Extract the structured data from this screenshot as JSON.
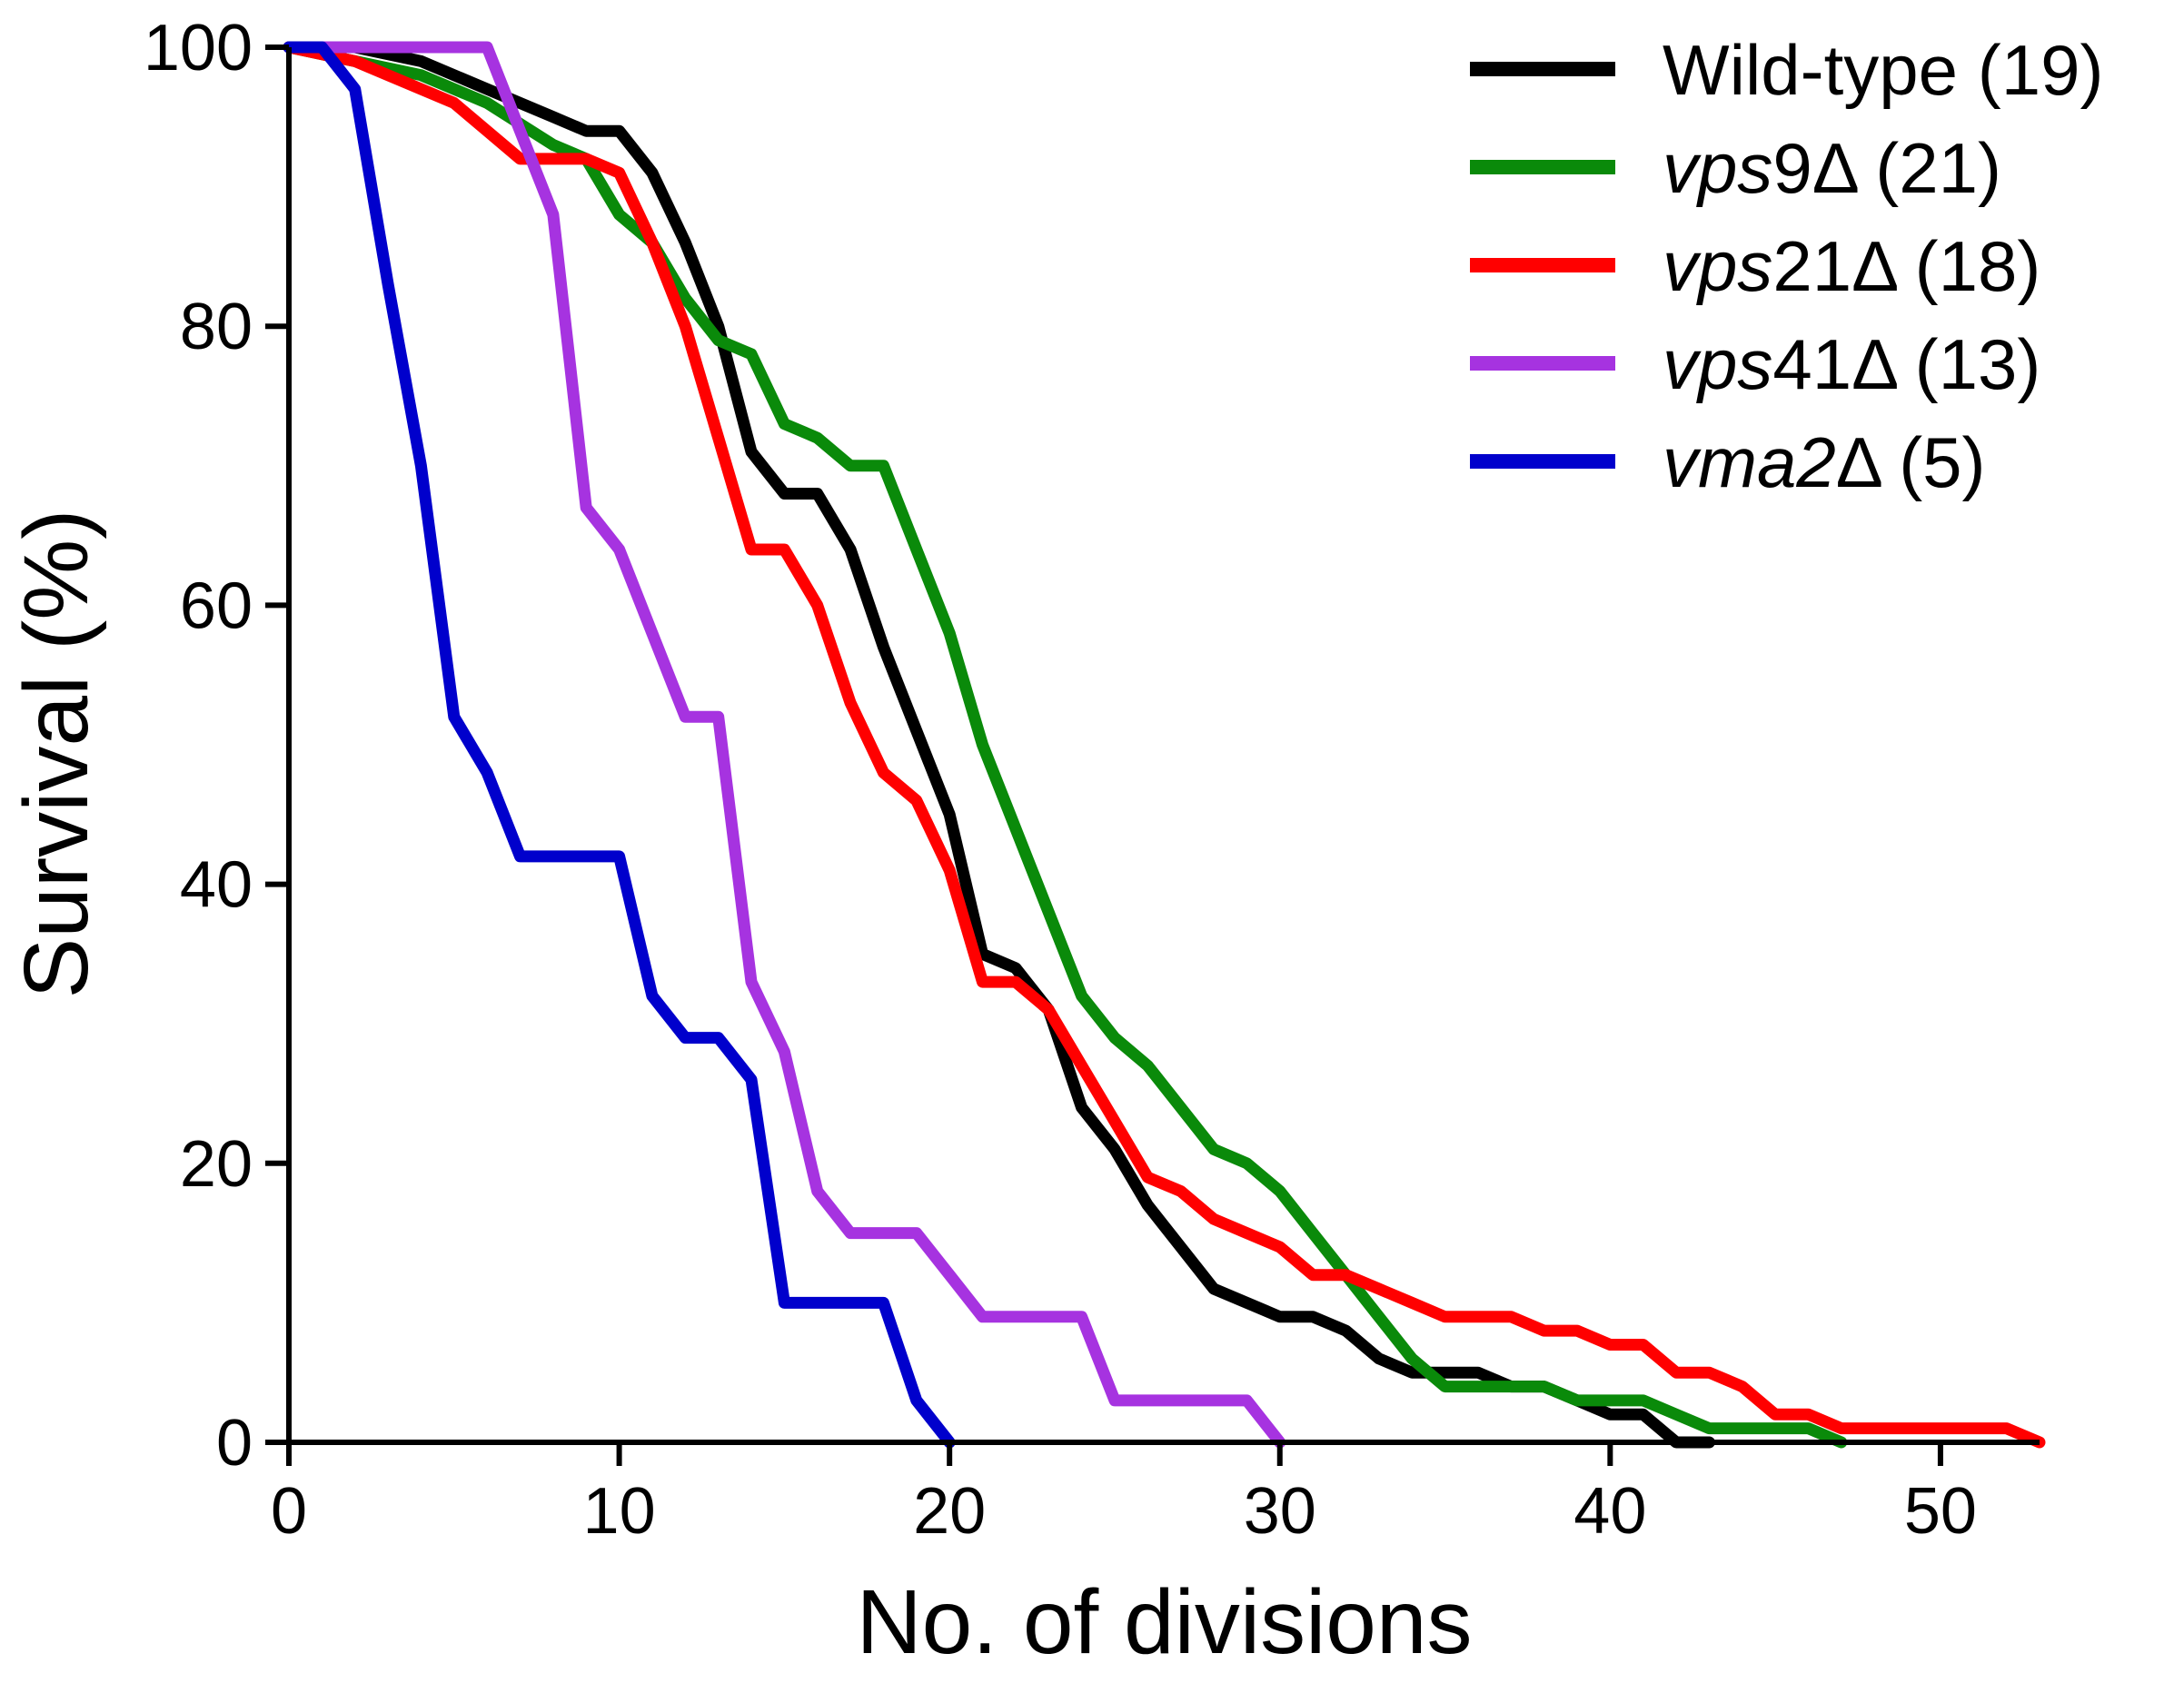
{
  "chart_data": {
    "type": "line",
    "step": true,
    "title": "",
    "xlabel": "No. of divisions",
    "ylabel": "Survival (%)",
    "xlim": [
      0,
      53
    ],
    "ylim": [
      0,
      100
    ],
    "xticks": [
      0,
      10,
      20,
      30,
      40,
      50
    ],
    "yticks": [
      0,
      20,
      40,
      60,
      80,
      100
    ],
    "xtick_labels": [
      "0",
      "10",
      "20",
      "30",
      "40",
      "50"
    ],
    "ytick_labels": [
      "0",
      "20",
      "40",
      "60",
      "80",
      "100"
    ],
    "legend_position": "top-right",
    "series": [
      {
        "name": "Wild-type (19)",
        "legend_italic": "",
        "legend_rest": "Wild-type (19)",
        "color": "#000000",
        "points": [
          [
            0,
            100
          ],
          [
            2,
            100
          ],
          [
            4,
            99
          ],
          [
            6,
            97
          ],
          [
            8,
            95
          ],
          [
            9,
            94
          ],
          [
            10,
            94
          ],
          [
            11,
            91
          ],
          [
            12,
            86
          ],
          [
            13,
            80
          ],
          [
            14,
            71
          ],
          [
            15,
            68
          ],
          [
            16,
            68
          ],
          [
            17,
            64
          ],
          [
            18,
            57
          ],
          [
            19,
            51
          ],
          [
            20,
            45
          ],
          [
            21,
            35
          ],
          [
            22,
            34
          ],
          [
            23,
            31
          ],
          [
            24,
            24
          ],
          [
            25,
            21
          ],
          [
            26,
            17
          ],
          [
            27,
            14
          ],
          [
            28,
            11
          ],
          [
            29,
            10
          ],
          [
            30,
            9
          ],
          [
            31,
            9
          ],
          [
            32,
            8
          ],
          [
            33,
            6
          ],
          [
            34,
            5
          ],
          [
            36,
            5
          ],
          [
            37,
            4
          ],
          [
            38,
            4
          ],
          [
            39,
            3
          ],
          [
            40,
            2
          ],
          [
            41,
            2
          ],
          [
            42,
            0
          ],
          [
            43,
            0
          ]
        ]
      },
      {
        "name": "vps9Δ (21)",
        "legend_italic": "vps",
        "legend_rest": "9Δ (21)",
        "color": "#0a8a0a",
        "points": [
          [
            0,
            100
          ],
          [
            2,
            99
          ],
          [
            4,
            98
          ],
          [
            6,
            96
          ],
          [
            8,
            93
          ],
          [
            9,
            92
          ],
          [
            10,
            88
          ],
          [
            11,
            86
          ],
          [
            12,
            82
          ],
          [
            13,
            79
          ],
          [
            14,
            78
          ],
          [
            15,
            73
          ],
          [
            16,
            72
          ],
          [
            17,
            70
          ],
          [
            18,
            70
          ],
          [
            19,
            64
          ],
          [
            20,
            58
          ],
          [
            21,
            50
          ],
          [
            22,
            44
          ],
          [
            23,
            38
          ],
          [
            24,
            32
          ],
          [
            25,
            29
          ],
          [
            26,
            27
          ],
          [
            27,
            24
          ],
          [
            28,
            21
          ],
          [
            29,
            20
          ],
          [
            30,
            18
          ],
          [
            31,
            15
          ],
          [
            32,
            12
          ],
          [
            33,
            9
          ],
          [
            34,
            6
          ],
          [
            35,
            4
          ],
          [
            36,
            4
          ],
          [
            37,
            4
          ],
          [
            38,
            4
          ],
          [
            39,
            3
          ],
          [
            40,
            3
          ],
          [
            41,
            3
          ],
          [
            42,
            2
          ],
          [
            43,
            1
          ],
          [
            45,
            1
          ],
          [
            46,
            1
          ],
          [
            47,
            0
          ]
        ]
      },
      {
        "name": "vps21Δ (18)",
        "legend_italic": "vps",
        "legend_rest": "21Δ (18)",
        "color": "#ff0000",
        "points": [
          [
            0,
            100
          ],
          [
            2,
            99
          ],
          [
            3,
            98
          ],
          [
            5,
            96
          ],
          [
            6,
            94
          ],
          [
            7,
            92
          ],
          [
            8,
            92
          ],
          [
            9,
            92
          ],
          [
            10,
            91
          ],
          [
            11,
            86
          ],
          [
            12,
            80
          ],
          [
            13,
            72
          ],
          [
            14,
            64
          ],
          [
            15,
            64
          ],
          [
            16,
            60
          ],
          [
            17,
            53
          ],
          [
            18,
            48
          ],
          [
            19,
            46
          ],
          [
            20,
            41
          ],
          [
            21,
            33
          ],
          [
            22,
            33
          ],
          [
            23,
            31
          ],
          [
            24,
            27
          ],
          [
            25,
            23
          ],
          [
            26,
            19
          ],
          [
            27,
            18
          ],
          [
            28,
            16
          ],
          [
            29,
            15
          ],
          [
            30,
            14
          ],
          [
            31,
            12
          ],
          [
            32,
            12
          ],
          [
            33,
            11
          ],
          [
            34,
            10
          ],
          [
            35,
            9
          ],
          [
            36,
            9
          ],
          [
            37,
            9
          ],
          [
            38,
            8
          ],
          [
            39,
            8
          ],
          [
            40,
            7
          ],
          [
            41,
            7
          ],
          [
            42,
            5
          ],
          [
            43,
            5
          ],
          [
            44,
            4
          ],
          [
            45,
            2
          ],
          [
            46,
            2
          ],
          [
            47,
            1
          ],
          [
            50,
            1
          ],
          [
            52,
            1
          ],
          [
            53,
            0
          ]
        ]
      },
      {
        "name": "vps41Δ (13)",
        "legend_italic": "vps",
        "legend_rest": "41Δ (13)",
        "color": "#a633e0",
        "points": [
          [
            0,
            100
          ],
          [
            6,
            100
          ],
          [
            7,
            94
          ],
          [
            8,
            88
          ],
          [
            9,
            67
          ],
          [
            10,
            64
          ],
          [
            11,
            58
          ],
          [
            12,
            52
          ],
          [
            13,
            52
          ],
          [
            14,
            33
          ],
          [
            15,
            28
          ],
          [
            16,
            18
          ],
          [
            17,
            15
          ],
          [
            18,
            15
          ],
          [
            19,
            15
          ],
          [
            20,
            12
          ],
          [
            21,
            9
          ],
          [
            22,
            9
          ],
          [
            23,
            9
          ],
          [
            24,
            9
          ],
          [
            25,
            3
          ],
          [
            26,
            3
          ],
          [
            27,
            3
          ],
          [
            28,
            3
          ],
          [
            29,
            3
          ],
          [
            30,
            0
          ]
        ]
      },
      {
        "name": "vma2Δ (5)",
        "legend_italic": "vma2",
        "legend_rest": "Δ (5)",
        "color": "#0000cc",
        "points": [
          [
            0,
            100
          ],
          [
            1,
            100
          ],
          [
            2,
            97
          ],
          [
            3,
            83
          ],
          [
            4,
            70
          ],
          [
            5,
            52
          ],
          [
            6,
            48
          ],
          [
            7,
            42
          ],
          [
            8,
            42
          ],
          [
            9,
            42
          ],
          [
            10,
            42
          ],
          [
            11,
            32
          ],
          [
            12,
            29
          ],
          [
            13,
            29
          ],
          [
            14,
            26
          ],
          [
            15,
            10
          ],
          [
            16,
            10
          ],
          [
            17,
            10
          ],
          [
            18,
            10
          ],
          [
            19,
            3
          ],
          [
            20,
            0
          ]
        ]
      }
    ]
  }
}
